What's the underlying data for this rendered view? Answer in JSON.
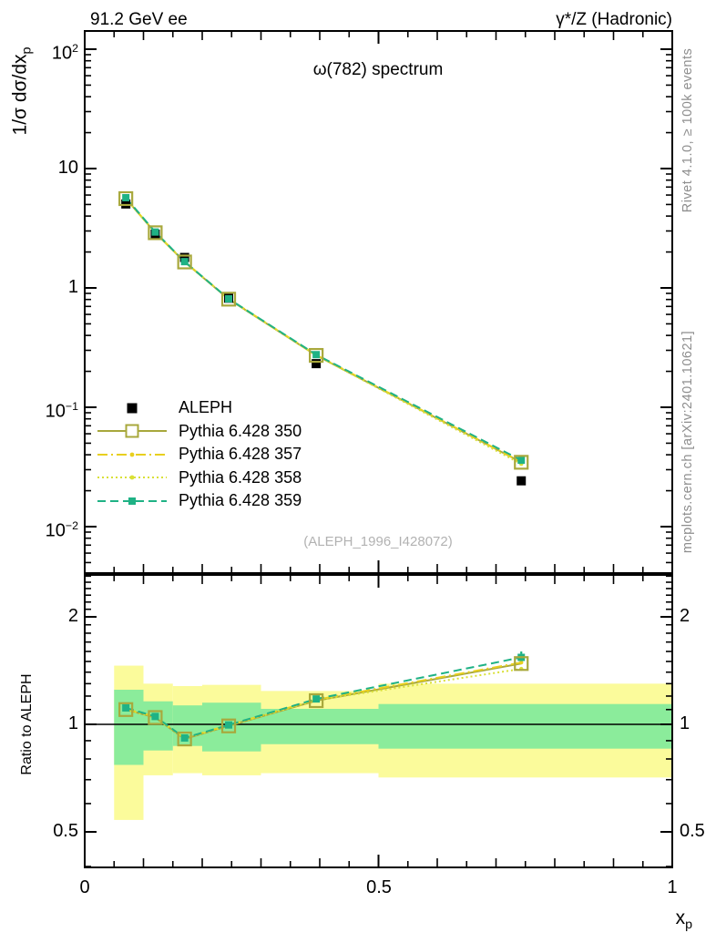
{
  "header": {
    "left": "91.2 GeV ee",
    "right": "γ*/Z (Hadronic)"
  },
  "side_texts": {
    "top": "Rivet 4.1.0, ≥ 100k events",
    "bottom": "mcplots.cern.ch [arXiv:2401.10621]"
  },
  "watermark": "(ALEPH_1996_I428072)",
  "chart_data": {
    "type": "line",
    "title": "ω(782) spectrum",
    "ylabel": {
      "text": "1/σ  dσ/dx",
      "sub": "p"
    },
    "xlabel": {
      "text": "x",
      "sub": "p"
    },
    "ratio_label": "Ratio to ALEPH",
    "xscale": "linear",
    "yscale": "log",
    "ratio_yscale": "log",
    "xlim": [
      0,
      1
    ],
    "ylim": [
      0.004,
      142
    ],
    "ratio_ylim": [
      0.39,
      2.62
    ],
    "legend_position": "middle-left",
    "grid": false,
    "x": [
      0.07,
      0.12,
      0.17,
      0.245,
      0.394,
      0.743
    ],
    "series": [
      {
        "label": "ALEPH",
        "key": "aleph",
        "color": "#000000",
        "line": "none",
        "marker": "square-filled-black",
        "values": [
          5.05,
          2.82,
          1.8,
          0.82,
          0.232,
          0.0242
        ]
      },
      {
        "label": "Pythia 6.428 350",
        "key": "p350",
        "color": "#a8a83c",
        "line": "solid",
        "marker": "square-open",
        "values": [
          5.6,
          2.9,
          1.65,
          0.805,
          0.272,
          0.0346
        ],
        "ratio": [
          1.1,
          1.045,
          0.91,
          0.99,
          1.165,
          1.48
        ]
      },
      {
        "label": "Pythia 6.428 357",
        "key": "p357",
        "color": "#e8cf1e",
        "line": "dashdot",
        "marker": "dot",
        "values": [
          5.62,
          2.92,
          1.66,
          0.81,
          0.274,
          0.0348
        ],
        "ratio": [
          1.105,
          1.05,
          0.915,
          0.995,
          1.172,
          1.49
        ]
      },
      {
        "label": "Pythia 6.428 358",
        "key": "p358",
        "color": "#d9e036",
        "line": "dot",
        "marker": "dot",
        "values": [
          5.58,
          2.9,
          1.652,
          0.806,
          0.272,
          0.0335
        ],
        "ratio": [
          1.1,
          1.046,
          0.912,
          0.992,
          1.168,
          1.43
        ]
      },
      {
        "label": "Pythia 6.428 359",
        "key": "p359",
        "color": "#1fb285",
        "line": "dash",
        "marker": "square-filled",
        "values": [
          5.7,
          2.94,
          1.66,
          0.81,
          0.276,
          0.036
        ],
        "ratio": [
          1.112,
          1.052,
          0.916,
          0.996,
          1.178,
          1.54
        ],
        "ratio_err_last": [
          1.49,
          1.6
        ]
      }
    ],
    "bands": [
      {
        "x": [
          0.05,
          0.1
        ],
        "yellow": [
          0.54,
          1.46
        ],
        "green": [
          0.77,
          1.25
        ]
      },
      {
        "x": [
          0.1,
          0.15
        ],
        "yellow": [
          0.72,
          1.3
        ],
        "green": [
          0.845,
          1.16
        ]
      },
      {
        "x": [
          0.15,
          0.2
        ],
        "yellow": [
          0.73,
          1.28
        ],
        "green": [
          0.87,
          1.13
        ]
      },
      {
        "x": [
          0.2,
          0.3
        ],
        "yellow": [
          0.72,
          1.29
        ],
        "green": [
          0.84,
          1.15
        ]
      },
      {
        "x": [
          0.3,
          0.5
        ],
        "yellow": [
          0.73,
          1.24
        ],
        "green": [
          0.88,
          1.105
        ]
      },
      {
        "x": [
          0.5,
          1.0
        ],
        "yellow": [
          0.71,
          1.3
        ],
        "green": [
          0.855,
          1.14
        ]
      }
    ],
    "band_colors": {
      "outer": "#fbfb9b",
      "inner": "#8bec9b"
    },
    "yticks": [
      {
        "v": 100,
        "base": "10",
        "exp": "2"
      },
      {
        "v": 10,
        "base": "10"
      },
      {
        "v": 1,
        "base": "1"
      },
      {
        "v": 0.1,
        "base": "10",
        "exp": "−1"
      },
      {
        "v": 0.01,
        "base": "10",
        "exp": "−2"
      }
    ],
    "ratio_yticks": [
      {
        "v": 2,
        "base": "2"
      },
      {
        "v": 1,
        "base": "1"
      },
      {
        "v": 0.5,
        "base": "0.5"
      }
    ],
    "xticks": [
      {
        "v": 0,
        "label": "0"
      },
      {
        "v": 0.5,
        "label": "0.5"
      },
      {
        "v": 1,
        "label": "1"
      }
    ]
  }
}
